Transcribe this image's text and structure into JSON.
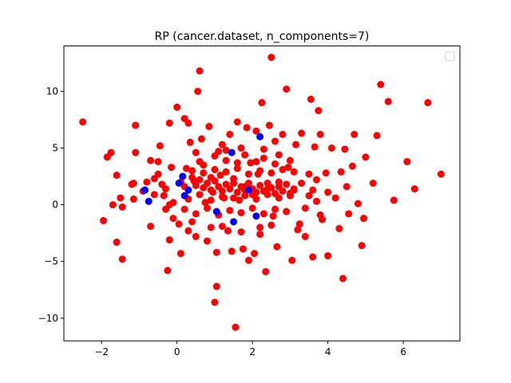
{
  "chart_data": {
    "type": "scatter",
    "title": "RP (cancer.dataset, n_components=7)",
    "xlabel": "",
    "ylabel": "",
    "xlim": [
      -3,
      7.5
    ],
    "ylim": [
      -12,
      14
    ],
    "xticks": [
      -2,
      0,
      2,
      4,
      6
    ],
    "yticks": [
      -10,
      -5,
      0,
      5,
      10
    ],
    "xtick_labels": [
      "−2",
      "0",
      "2",
      "4",
      "6"
    ],
    "ytick_labels": [
      "−10",
      "−5",
      "0",
      "5",
      "10"
    ],
    "grid": false,
    "legend": {
      "placement": "top-right",
      "entries": []
    },
    "series": [
      {
        "color": "#0000ff",
        "points": [
          [
            -0.85,
            1.3
          ],
          [
            -0.75,
            0.3
          ],
          [
            0.15,
            2.5
          ],
          [
            0.3,
            1.3
          ],
          [
            0.2,
            0.8
          ],
          [
            1.05,
            -0.6
          ],
          [
            1.45,
            4.6
          ],
          [
            1.5,
            -1.5
          ],
          [
            2.2,
            6.0
          ],
          [
            2.1,
            -1.0
          ],
          [
            0.05,
            1.9
          ],
          [
            1.9,
            1.3
          ]
        ]
      },
      {
        "color": "#ff0000",
        "points": [
          [
            -2.5,
            7.3
          ],
          [
            -1.95,
            -1.4
          ],
          [
            -1.85,
            4.2
          ],
          [
            -1.75,
            4.6
          ],
          [
            -1.7,
            0.0
          ],
          [
            -1.6,
            -3.3
          ],
          [
            -1.6,
            2.6
          ],
          [
            -1.5,
            0.6
          ],
          [
            -1.45,
            -4.8
          ],
          [
            -1.45,
            -0.2
          ],
          [
            -1.2,
            1.8
          ],
          [
            -1.15,
            1.9
          ],
          [
            -1.15,
            0.5
          ],
          [
            -1.1,
            7.0
          ],
          [
            -1.1,
            4.6
          ],
          [
            -0.9,
            1.2
          ],
          [
            -0.7,
            3.9
          ],
          [
            -0.7,
            -1.9
          ],
          [
            -0.6,
            2.3
          ],
          [
            -0.5,
            3.8
          ],
          [
            -0.45,
            5.2
          ],
          [
            -0.4,
            1.8
          ],
          [
            -0.35,
            0.8
          ],
          [
            -0.3,
            -0.4
          ],
          [
            -0.25,
            -5.8
          ],
          [
            -0.2,
            7.2
          ],
          [
            -0.2,
            -3.1
          ],
          [
            -0.15,
            3.3
          ],
          [
            -0.1,
            0.2
          ],
          [
            0.0,
            8.6
          ],
          [
            0.05,
            -1.7
          ],
          [
            0.1,
            -4.3
          ],
          [
            0.2,
            7.6
          ],
          [
            0.25,
            3.2
          ],
          [
            0.3,
            7.2
          ],
          [
            0.35,
            5.5
          ],
          [
            0.4,
            -1.5
          ],
          [
            0.45,
            2.1
          ],
          [
            0.5,
            4.6
          ],
          [
            0.5,
            -2.8
          ],
          [
            0.55,
            10.0
          ],
          [
            0.6,
            11.8
          ],
          [
            0.65,
            5.8
          ],
          [
            0.7,
            3.5
          ],
          [
            0.75,
            0.2
          ],
          [
            0.8,
            -3.2
          ],
          [
            0.85,
            6.9
          ],
          [
            0.9,
            2.4
          ],
          [
            0.95,
            1.1
          ],
          [
            1.0,
            -8.6
          ],
          [
            1.05,
            -7.2
          ],
          [
            1.05,
            -4.2
          ],
          [
            1.1,
            4.7
          ],
          [
            1.15,
            2.6
          ],
          [
            1.2,
            5.3
          ],
          [
            1.25,
            0.6
          ],
          [
            1.3,
            3.9
          ],
          [
            1.35,
            -2.3
          ],
          [
            1.4,
            6.2
          ],
          [
            1.45,
            -4.1
          ],
          [
            1.5,
            2.3
          ],
          [
            1.55,
            -10.8
          ],
          [
            1.6,
            7.3
          ],
          [
            1.65,
            0.4
          ],
          [
            1.7,
            5.0
          ],
          [
            1.75,
            -3.9
          ],
          [
            1.8,
            1.6
          ],
          [
            1.85,
            6.8
          ],
          [
            1.9,
            -4.9
          ],
          [
            1.95,
            3.7
          ],
          [
            2.0,
            0.9
          ],
          [
            2.05,
            -4.3
          ],
          [
            2.1,
            6.5
          ],
          [
            2.15,
            2.7
          ],
          [
            2.2,
            -2.0
          ],
          [
            2.25,
            9.0
          ],
          [
            2.3,
            4.1
          ],
          [
            2.35,
            -5.9
          ],
          [
            2.4,
            1.4
          ],
          [
            2.45,
            7.0
          ],
          [
            2.5,
            13.0
          ],
          [
            2.55,
            -1.0
          ],
          [
            2.6,
            5.6
          ],
          [
            2.65,
            -3.7
          ],
          [
            2.7,
            2.0
          ],
          [
            2.8,
            6.2
          ],
          [
            2.9,
            10.2
          ],
          [
            2.95,
            3.3
          ],
          [
            3.05,
            -4.9
          ],
          [
            3.1,
            1.3
          ],
          [
            3.15,
            5.3
          ],
          [
            3.25,
            -1.7
          ],
          [
            3.3,
            6.3
          ],
          [
            3.4,
            -2.8
          ],
          [
            3.5,
            2.7
          ],
          [
            3.55,
            9.3
          ],
          [
            3.6,
            -4.6
          ],
          [
            3.65,
            5.1
          ],
          [
            3.7,
            0.3
          ],
          [
            3.75,
            8.3
          ],
          [
            3.8,
            6.2
          ],
          [
            3.85,
            -1.3
          ],
          [
            3.95,
            2.8
          ],
          [
            4.0,
            -4.5
          ],
          [
            4.1,
            5.0
          ],
          [
            4.2,
            0.6
          ],
          [
            4.3,
            -2.1
          ],
          [
            4.35,
            2.9
          ],
          [
            4.4,
            -6.5
          ],
          [
            4.45,
            4.9
          ],
          [
            4.5,
            1.6
          ],
          [
            4.55,
            -0.8
          ],
          [
            4.65,
            3.4
          ],
          [
            4.7,
            6.2
          ],
          [
            4.8,
            0.1
          ],
          [
            4.9,
            -3.6
          ],
          [
            4.95,
            -1.2
          ],
          [
            5.0,
            4.2
          ],
          [
            5.2,
            1.9
          ],
          [
            5.3,
            6.1
          ],
          [
            5.4,
            10.6
          ],
          [
            5.6,
            9.1
          ],
          [
            5.75,
            0.4
          ],
          [
            6.1,
            3.8
          ],
          [
            6.3,
            1.4
          ],
          [
            6.65,
            9.0
          ],
          [
            7.0,
            2.7
          ],
          [
            0.1,
            2.0
          ],
          [
            0.2,
            1.6
          ],
          [
            0.4,
            2.4
          ],
          [
            0.5,
            1.7
          ],
          [
            0.6,
            2.2
          ],
          [
            0.7,
            1.5
          ],
          [
            0.8,
            1.9
          ],
          [
            0.9,
            1.3
          ],
          [
            1.0,
            2.1
          ],
          [
            1.1,
            1.6
          ],
          [
            1.2,
            1.2
          ],
          [
            1.3,
            1.8
          ],
          [
            1.4,
            1.4
          ],
          [
            1.5,
            1.9
          ],
          [
            1.6,
            1.1
          ],
          [
            1.7,
            1.6
          ],
          [
            1.8,
            1.3
          ],
          [
            1.9,
            1.9
          ],
          [
            2.0,
            1.4
          ],
          [
            2.1,
            1.1
          ],
          [
            2.2,
            1.7
          ],
          [
            2.3,
            1.2
          ],
          [
            2.4,
            1.9
          ],
          [
            2.5,
            1.5
          ],
          [
            2.6,
            1.0
          ],
          [
            2.7,
            1.6
          ],
          [
            2.8,
            1.2
          ],
          [
            2.9,
            1.8
          ],
          [
            3.0,
            1.0
          ],
          [
            3.1,
            1.4
          ],
          [
            0.3,
            0.5
          ],
          [
            0.6,
            0.9
          ],
          [
            0.9,
            0.4
          ],
          [
            1.2,
            0.7
          ],
          [
            1.5,
            0.6
          ],
          [
            1.8,
            0.8
          ],
          [
            2.1,
            0.5
          ],
          [
            2.4,
            0.9
          ],
          [
            2.7,
            0.6
          ],
          [
            3.0,
            0.8
          ],
          [
            0.4,
            3.0
          ],
          [
            0.7,
            2.8
          ],
          [
            1.0,
            3.1
          ],
          [
            1.3,
            2.9
          ],
          [
            1.6,
            3.2
          ],
          [
            1.9,
            2.7
          ],
          [
            2.2,
            3.0
          ],
          [
            2.5,
            2.8
          ],
          [
            2.8,
            3.1
          ],
          [
            3.1,
            2.9
          ],
          [
            0.2,
            -0.4
          ],
          [
            0.5,
            -0.8
          ],
          [
            0.8,
            -0.3
          ],
          [
            1.1,
            -0.9
          ],
          [
            1.4,
            -0.5
          ],
          [
            1.7,
            -0.7
          ],
          [
            2.0,
            -0.3
          ],
          [
            2.3,
            -0.8
          ],
          [
            2.6,
            -0.4
          ],
          [
            2.9,
            -0.6
          ],
          [
            -0.6,
            0.9
          ],
          [
            -0.3,
            1.4
          ],
          [
            -0.8,
            2.0
          ],
          [
            -0.5,
            2.7
          ],
          [
            -0.2,
            0.0
          ],
          [
            3.3,
            1.9
          ],
          [
            3.5,
            0.8
          ],
          [
            3.7,
            2.2
          ],
          [
            3.4,
            -0.3
          ],
          [
            3.6,
            1.3
          ],
          [
            1.0,
            4.3
          ],
          [
            1.3,
            4.8
          ],
          [
            1.8,
            4.4
          ],
          [
            2.3,
            4.9
          ],
          [
            2.7,
            4.4
          ],
          [
            0.6,
            3.8
          ],
          [
            1.6,
            3.7
          ],
          [
            2.1,
            3.8
          ],
          [
            2.6,
            3.6
          ],
          [
            3.0,
            3.9
          ],
          [
            1.2,
            -1.9
          ],
          [
            1.7,
            -2.4
          ],
          [
            2.2,
            -2.6
          ],
          [
            2.5,
            -1.8
          ],
          [
            0.9,
            -2.0
          ],
          [
            0.3,
            -2.3
          ],
          [
            -0.1,
            -1.2
          ],
          [
            3.2,
            -2.2
          ],
          [
            3.8,
            -0.9
          ],
          [
            4.0,
            1.1
          ]
        ]
      }
    ]
  }
}
